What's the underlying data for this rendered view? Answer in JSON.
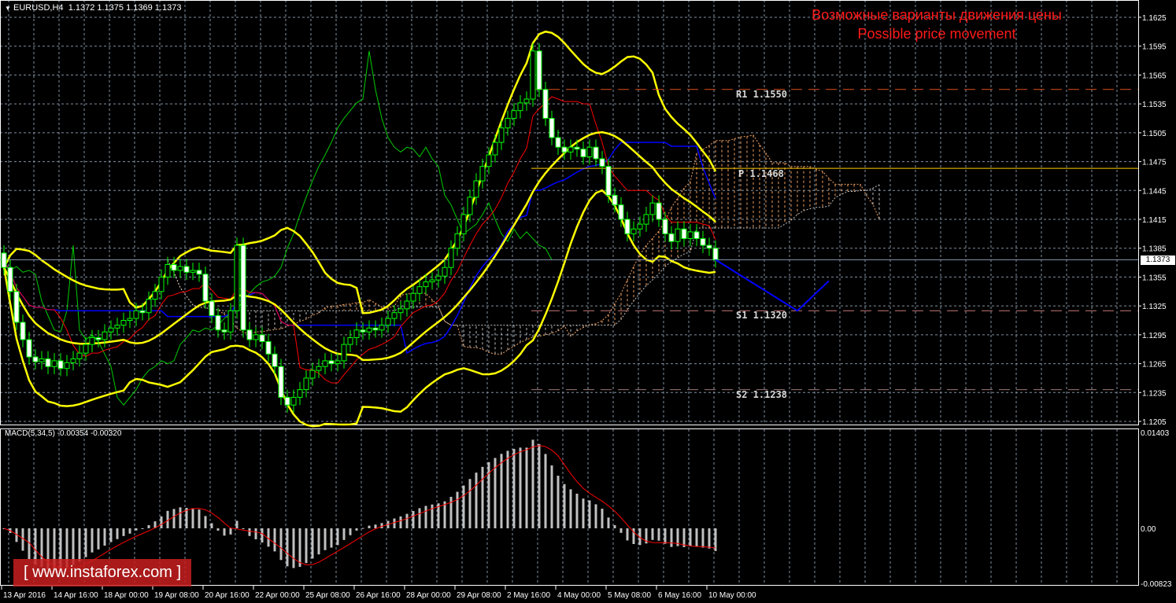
{
  "header": {
    "symbol": "EURUSD,H4",
    "ohlc": "1.1372 1.1375 1.1369 1.1373",
    "menu_icon": "triangle-down-icon"
  },
  "title": {
    "line1": "Возможные варианты движения цены",
    "line2": "Possible price movement",
    "color": "#ff1a1a"
  },
  "watermark": {
    "text": "[ www.instaforex.com ]",
    "color": "#c81e1e"
  },
  "macd": {
    "label": "MACD(5,34,5) -0.00354 -0.00320"
  },
  "chart_data": [
    {
      "type": "candlestick",
      "symbol": "EURUSD",
      "timeframe": "H4",
      "ylim": [
        1.1205,
        1.1625
      ],
      "price_ticks": [
        "1.1625",
        "1.1595",
        "1.1565",
        "1.1535",
        "1.1505",
        "1.1475",
        "1.1445",
        "1.1415",
        "1.1385",
        "1.1355",
        "1.1325",
        "1.1295",
        "1.1265",
        "1.1235",
        "1.1205"
      ],
      "time_ticks": [
        "13 Apr 2016",
        "14 Apr 16:00",
        "18 Apr 00:00",
        "19 Apr 08:00",
        "20 Apr 16:00",
        "22 Apr 00:00",
        "25 Apr 08:00",
        "26 Apr 16:00",
        "28 Apr 00:00",
        "29 Apr 08:00",
        "2 May 16:00",
        "4 May 00:00",
        "5 May 08:00",
        "6 May 16:00",
        "10 May 00:00"
      ],
      "closes": [
        1.1365,
        1.134,
        1.1308,
        1.129,
        1.1272,
        1.1267,
        1.127,
        1.1262,
        1.1268,
        1.126,
        1.1266,
        1.127,
        1.1276,
        1.1285,
        1.1292,
        1.129,
        1.1298,
        1.1302,
        1.1305,
        1.131,
        1.1312,
        1.132,
        1.1318,
        1.1332,
        1.134,
        1.1355,
        1.1368,
        1.1362,
        1.1366,
        1.136,
        1.1362,
        1.1358,
        1.133,
        1.1315,
        1.13,
        1.1298,
        1.132,
        1.1388,
        1.13,
        1.129,
        1.1295,
        1.1288,
        1.1275,
        1.1262,
        1.123,
        1.1222,
        1.123,
        1.1238,
        1.125,
        1.1258,
        1.1262,
        1.1268,
        1.1265,
        1.1268,
        1.1285,
        1.1292,
        1.13,
        1.1298,
        1.1302,
        1.13,
        1.1305,
        1.1312,
        1.1318,
        1.1322,
        1.133,
        1.1338,
        1.1345,
        1.135,
        1.1352,
        1.1356,
        1.1365,
        1.1385,
        1.14,
        1.142,
        1.1438,
        1.1455,
        1.147,
        1.1482,
        1.1495,
        1.151,
        1.152,
        1.1528,
        1.1536,
        1.154,
        1.159,
        1.155,
        1.152,
        1.15,
        1.149,
        1.1485,
        1.149,
        1.1488,
        1.148,
        1.149,
        1.1478,
        1.147,
        1.144,
        1.143,
        1.1415,
        1.14,
        1.1405,
        1.141,
        1.142,
        1.1432,
        1.1415,
        1.14,
        1.1392,
        1.1405,
        1.1395,
        1.1402,
        1.1395,
        1.1388,
        1.1385,
        1.1373
      ],
      "current_price": {
        "value": 1.1373,
        "label": "1.1373"
      },
      "levels": [
        {
          "name": "R1",
          "value": 1.155,
          "label": "R1 1.1550",
          "color": "#e0501e",
          "style": "dashed"
        },
        {
          "name": "P",
          "value": 1.1468,
          "label": "P 1.1468",
          "color": "#ffcc00",
          "style": "solid"
        },
        {
          "name": "S1",
          "value": 1.132,
          "label": "S1 1.1320",
          "color": "#c87878",
          "style": "dashed"
        },
        {
          "name": "S2",
          "value": 1.1238,
          "label": "S2 1.1238",
          "color": "#a07878",
          "style": "dashed"
        }
      ],
      "forecast_path": [
        [
          113,
          1.1373
        ],
        [
          126,
          1.132
        ],
        [
          131,
          1.1351
        ]
      ],
      "indicators": [
        "Bollinger Bands",
        "Ichimoku"
      ],
      "colors": {
        "bollinger": "#ffff00",
        "tenkan": "#ff0000",
        "kijun": "#0000ff",
        "chikou": "#00cc00",
        "candle": "#00ff00",
        "grid": "#8090a0",
        "forecast": "#0000ff"
      },
      "grid": true
    },
    {
      "type": "bar",
      "name": "MACD(5,34,5)",
      "ylim": [
        -0.00823,
        0.01403
      ],
      "ticks": [
        "0.01403",
        "0.00",
        "-0.00823"
      ],
      "colors": {
        "histogram": "#c0c0c0",
        "signal": "#ff0000"
      }
    }
  ]
}
